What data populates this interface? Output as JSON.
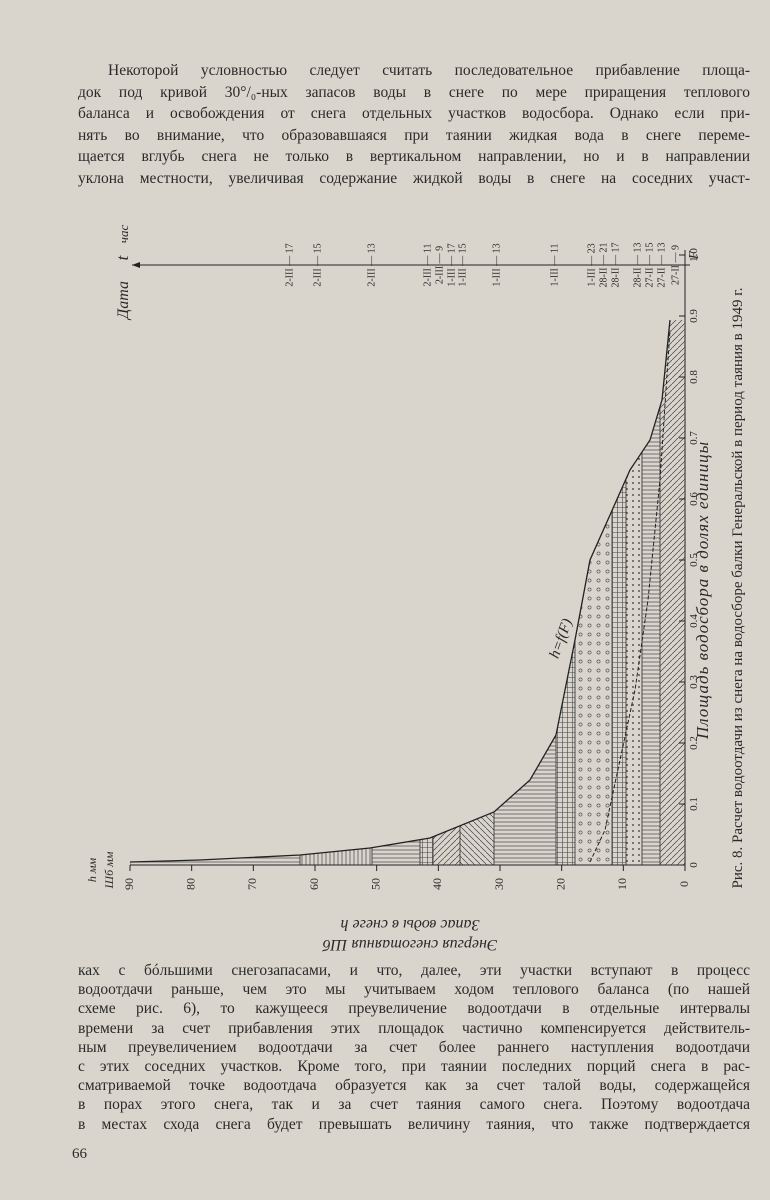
{
  "text_top": [
    "Некоторой условностью следует считать последовательное прибавление площа-",
    "док под кривой 30°/₀-ных запасов воды в снеге по мере приращения теплового",
    "баланса и освобождения от снега отдельных участков водосбора. Однако если при-",
    "нять во внимание, что образовавшаяся при таянии жидкая вода в снеге переме-",
    "щается вглубь снега не только в вертикальном направлении, но и в направлении",
    "уклона местности, увеличивая содержание жидкой воды в снеге на соседних участ-"
  ],
  "figure": {
    "date_axis_label": "Дата",
    "time_symbol": "t",
    "time_unit": "час",
    "date_labels": [
      "2-III — 17",
      "2-III — 15",
      "2-III — 13",
      "2-III — 11",
      "2-III — 9",
      "1-III — 17",
      "1-III — 15",
      "1-III — 13",
      "1-III — 11",
      "1-III — 23",
      "28-II — 21",
      "28-II — 17",
      "28-II — 13",
      "27-II — 15",
      "27-II — 13",
      "27-II — 9"
    ],
    "value_unit_1": "h мм",
    "value_unit_2": "Шб мм",
    "value_ticks": [
      "90",
      "80",
      "70",
      "60",
      "50",
      "40",
      "30",
      "20",
      "10",
      "0"
    ],
    "area_ticks": [
      "0",
      "0.1",
      "0.2",
      "0.3",
      "0.4",
      "0.5",
      "0.6",
      "0.7",
      "0.8",
      "0.9",
      "1.0"
    ],
    "area_symbol": "F",
    "area_label": "Площадь водосбора в долях единицы",
    "curve_label": "h=f(F)",
    "value_label_1": "Запас воды в снеге h",
    "value_label_2": "Энергия снеготаяния Шб"
  },
  "caption": "Рис. 8. Расчет водоотдачи из снега на водосборе балки Генеральской в период таяния в 1949 г.",
  "text_bottom": [
    "ках с бóльшими снегозапасами, и что, далее, эти участки вступают в процесс",
    "водоотдачи раньше, чем это мы учитываем ходом теплового баланса (по нашей",
    "схеме рис. 6), то кажущееся преувеличение водоотдачи в отдельные интервалы",
    "времени за счет прибавления этих площадок частично компенсируется действитель-",
    "ным преувеличением водоотдачи за счет более раннего наступления водоотдачи",
    "с этих соседних участков. Кроме того, при таянии последних порций снега в рас-",
    "сматриваемой точке водоотдача образуется как за счет талой воды, содержащейся",
    "в порах этого снега, так и за счет таяния самого снега. Поэтому водоотдача",
    "в местах схода снега будет превышать величину таяния, что также подтверждается"
  ],
  "page_number": "66"
}
